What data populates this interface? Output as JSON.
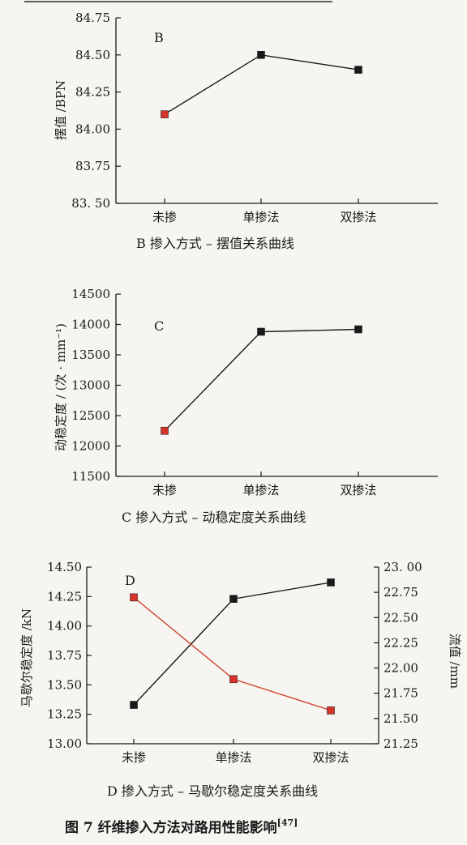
{
  "figure_caption": {
    "text": "图 7   纤维掺入方法对路用性能影响",
    "ref": "[47]"
  },
  "colors": {
    "black_series": "#1a1a1a",
    "red_series": "#d8332a",
    "red_line": "#d0442f"
  },
  "chart_data": [
    {
      "type": "line",
      "panel_letter": "B",
      "caption": "B   掺入方式 – 摆值关系曲线",
      "categories": [
        "未掺",
        "单掺法",
        "双掺法"
      ],
      "ylabel": "摆值 /BPN",
      "ylim": [
        83.5,
        84.75
      ],
      "yticks": [
        "83. 50",
        "83.75",
        "84.00",
        "84.25",
        "84.50",
        "84.75"
      ],
      "ytick_values": [
        83.5,
        83.75,
        84.0,
        84.25,
        84.5,
        84.75
      ],
      "series": [
        {
          "values": [
            84.1,
            84.5,
            84.4
          ],
          "marker_colors": [
            "#d8332a",
            "#1a1a1a",
            "#1a1a1a"
          ],
          "line_color": "#1a1a1a"
        }
      ]
    },
    {
      "type": "line",
      "panel_letter": "C",
      "caption": "C   掺入方式 – 动稳定度关系曲线",
      "categories": [
        "未掺",
        "单掺法",
        "双掺法"
      ],
      "ylabel": "动稳定度 / (次 · mm⁻¹)",
      "ylim": [
        11500,
        14500
      ],
      "yticks": [
        "11500",
        "12000",
        "12500",
        "13000",
        "13500",
        "14000",
        "14500"
      ],
      "ytick_values": [
        11500,
        12000,
        12500,
        13000,
        13500,
        14000,
        14500
      ],
      "series": [
        {
          "values": [
            12250,
            13880,
            13920
          ],
          "marker_colors": [
            "#d8332a",
            "#1a1a1a",
            "#1a1a1a"
          ],
          "line_color": "#1a1a1a"
        }
      ]
    },
    {
      "type": "line",
      "panel_letter": "D",
      "caption": "D   掺入方式 – 马歇尔稳定度关系曲线",
      "categories": [
        "未掺",
        "单掺法",
        "双掺法"
      ],
      "ylabel": "马歇尔稳定度 /kN",
      "ylim": [
        13.0,
        14.5
      ],
      "yticks": [
        "13.00",
        "13.25",
        "13.50",
        "13.75",
        "14.00",
        "14.25",
        "14.50"
      ],
      "ytick_values": [
        13.0,
        13.25,
        13.5,
        13.75,
        14.0,
        14.25,
        14.5
      ],
      "y2label": "流值 /mm",
      "y2lim": [
        21.25,
        23.0
      ],
      "y2ticks": [
        "21.25",
        "21.50",
        "21.75",
        "22.00",
        "22.25",
        "22.50",
        "22.75",
        "23. 00"
      ],
      "y2tick_values": [
        21.25,
        21.5,
        21.75,
        22.0,
        22.25,
        22.5,
        22.75,
        23.0
      ],
      "series": [
        {
          "axis": "left",
          "values": [
            13.33,
            14.23,
            14.37
          ],
          "marker_colors": [
            "#1a1a1a",
            "#1a1a1a",
            "#1a1a1a"
          ],
          "line_color": "#1a1a1a"
        },
        {
          "axis": "right",
          "values": [
            22.7,
            21.89,
            21.58
          ],
          "marker_colors": [
            "#d8332a",
            "#d8332a",
            "#d8332a"
          ],
          "line_color": "#d0442f"
        }
      ]
    }
  ]
}
